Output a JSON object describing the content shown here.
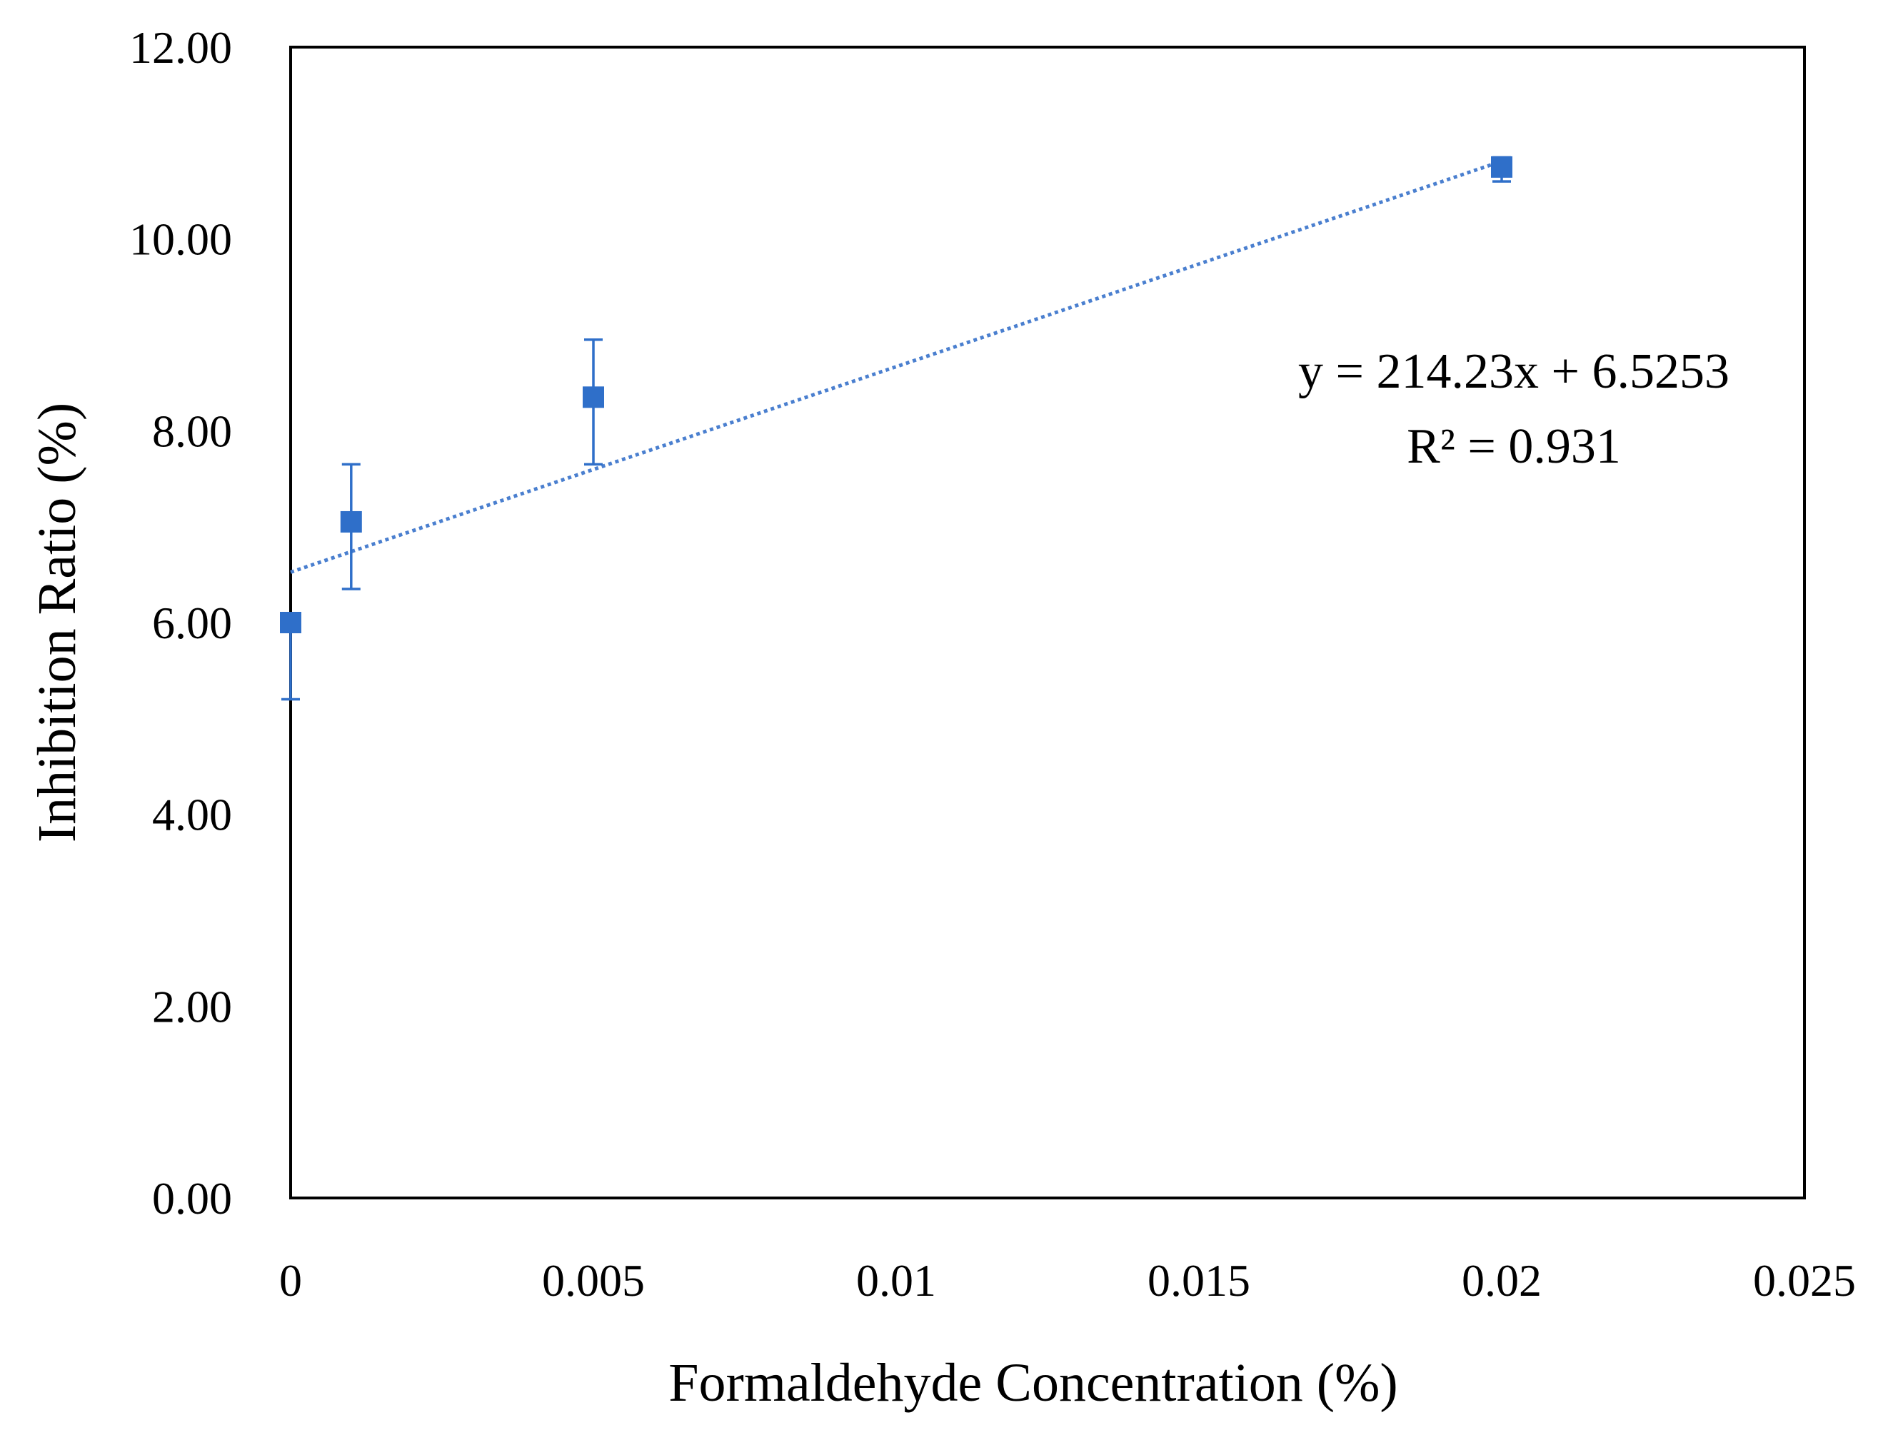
{
  "chart_data": {
    "type": "scatter",
    "title": "",
    "xlabel": "Formaldehyde Concentration (%)",
    "ylabel": "Inhibition Ratio (%)",
    "xlim": [
      0,
      0.025
    ],
    "ylim": [
      0,
      12
    ],
    "x_ticks": [
      0,
      0.005,
      0.01,
      0.015,
      0.02,
      0.025
    ],
    "x_tick_labels": [
      "0",
      "0.005",
      "0.01",
      "0.015",
      "0.02",
      "0.025"
    ],
    "y_ticks": [
      0,
      2,
      4,
      6,
      8,
      10,
      12
    ],
    "y_tick_labels": [
      "0.00",
      "2.00",
      "4.00",
      "6.00",
      "8.00",
      "10.00",
      "12.00"
    ],
    "grid": false,
    "legend": false,
    "marker_color": "#2f6fc9",
    "series": [
      {
        "name": "Inhibition ratio",
        "marker": "square",
        "x": [
          0,
          0.001,
          0.005,
          0.02
        ],
        "y": [
          6.0,
          7.05,
          8.35,
          10.75
        ],
        "error_low": [
          0.8,
          0.7,
          0.7,
          0.15
        ],
        "error_high": [
          0.0,
          0.6,
          0.6,
          0.1
        ]
      }
    ],
    "trendline": {
      "type": "linear",
      "slope": 214.23,
      "intercept": 6.5253,
      "x_range": [
        0,
        0.02
      ],
      "style": "dotted",
      "color": "#4a7fcf"
    },
    "annotations": [
      {
        "text": "y = 214.23x + 6.5253",
        "placement": "right-upper"
      },
      {
        "text": "R² = 0.931",
        "placement": "right-upper"
      }
    ]
  }
}
